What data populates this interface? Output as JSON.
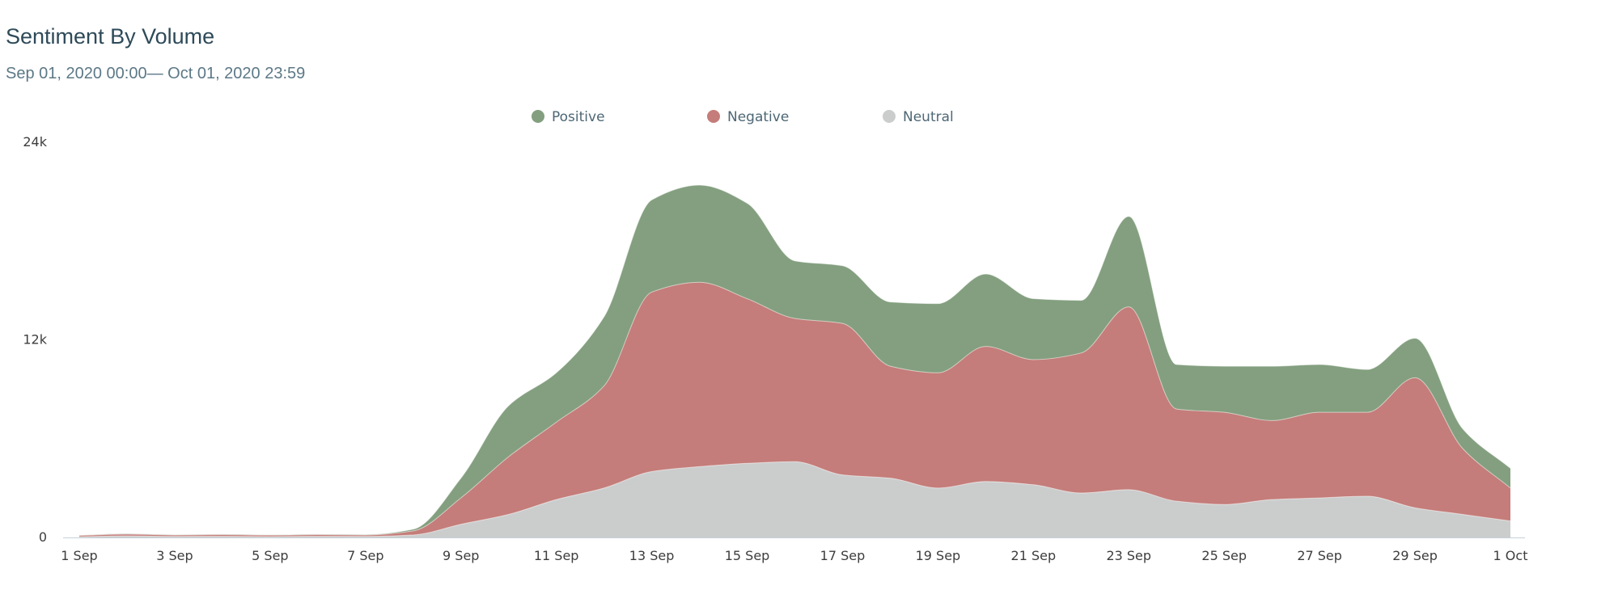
{
  "header": {
    "title": "Sentiment By Volume",
    "subtitle": "Sep 01, 2020 00:00— Oct 01, 2020 23:59"
  },
  "chart_data": {
    "type": "area",
    "stacked": true,
    "smooth": true,
    "x_tick_labels": [
      "1 Sep",
      "3 Sep",
      "5 Sep",
      "7 Sep",
      "9 Sep",
      "11 Sep",
      "13 Sep",
      "15 Sep",
      "17 Sep",
      "19 Sep",
      "21 Sep",
      "23 Sep",
      "25 Sep",
      "27 Sep",
      "29 Sep",
      "1 Oct"
    ],
    "x": [
      "1 Sep",
      "2 Sep",
      "3 Sep",
      "4 Sep",
      "5 Sep",
      "6 Sep",
      "7 Sep",
      "8 Sep",
      "9 Sep",
      "10 Sep",
      "11 Sep",
      "12 Sep",
      "13 Sep",
      "14 Sep",
      "15 Sep",
      "16 Sep",
      "17 Sep",
      "18 Sep",
      "19 Sep",
      "20 Sep",
      "21 Sep",
      "22 Sep",
      "23 Sep",
      "24 Sep",
      "25 Sep",
      "26 Sep",
      "27 Sep",
      "28 Sep",
      "29 Sep",
      "30 Sep",
      "1 Oct"
    ],
    "ylim": [
      0,
      24000
    ],
    "y_ticks": [
      0,
      12000,
      24000
    ],
    "y_tick_labels": [
      "0",
      "12k",
      "24k"
    ],
    "xlabel": "",
    "ylabel": "",
    "legend_position": "top-center",
    "grid": false,
    "series": [
      {
        "name": "Neutral",
        "color": "#cbcdcd",
        "values": [
          40,
          90,
          60,
          70,
          50,
          70,
          60,
          150,
          800,
          1400,
          2300,
          3000,
          4000,
          4300,
          4500,
          4600,
          3800,
          3600,
          3000,
          3400,
          3200,
          2700,
          2900,
          2200,
          2000,
          2300,
          2400,
          2500,
          1800,
          1400,
          1000
        ]
      },
      {
        "name": "Negative",
        "color": "#c47d7a",
        "values": [
          80,
          110,
          90,
          100,
          90,
          100,
          90,
          250,
          1600,
          3500,
          4700,
          6200,
          10900,
          11200,
          10000,
          8700,
          9200,
          6800,
          7000,
          8200,
          7600,
          8500,
          11100,
          5600,
          5600,
          4800,
          5200,
          5100,
          7900,
          4000,
          2000
        ]
      },
      {
        "name": "Positive",
        "color": "#839f7f",
        "values": [
          20,
          30,
          20,
          30,
          20,
          30,
          30,
          100,
          1200,
          3100,
          3000,
          4200,
          5600,
          5900,
          5800,
          3500,
          3500,
          3900,
          4200,
          4400,
          3700,
          3200,
          5500,
          2700,
          2800,
          3300,
          2900,
          2600,
          2400,
          1200,
          1200
        ]
      }
    ],
    "legend_order": [
      "Positive",
      "Negative",
      "Neutral"
    ]
  }
}
